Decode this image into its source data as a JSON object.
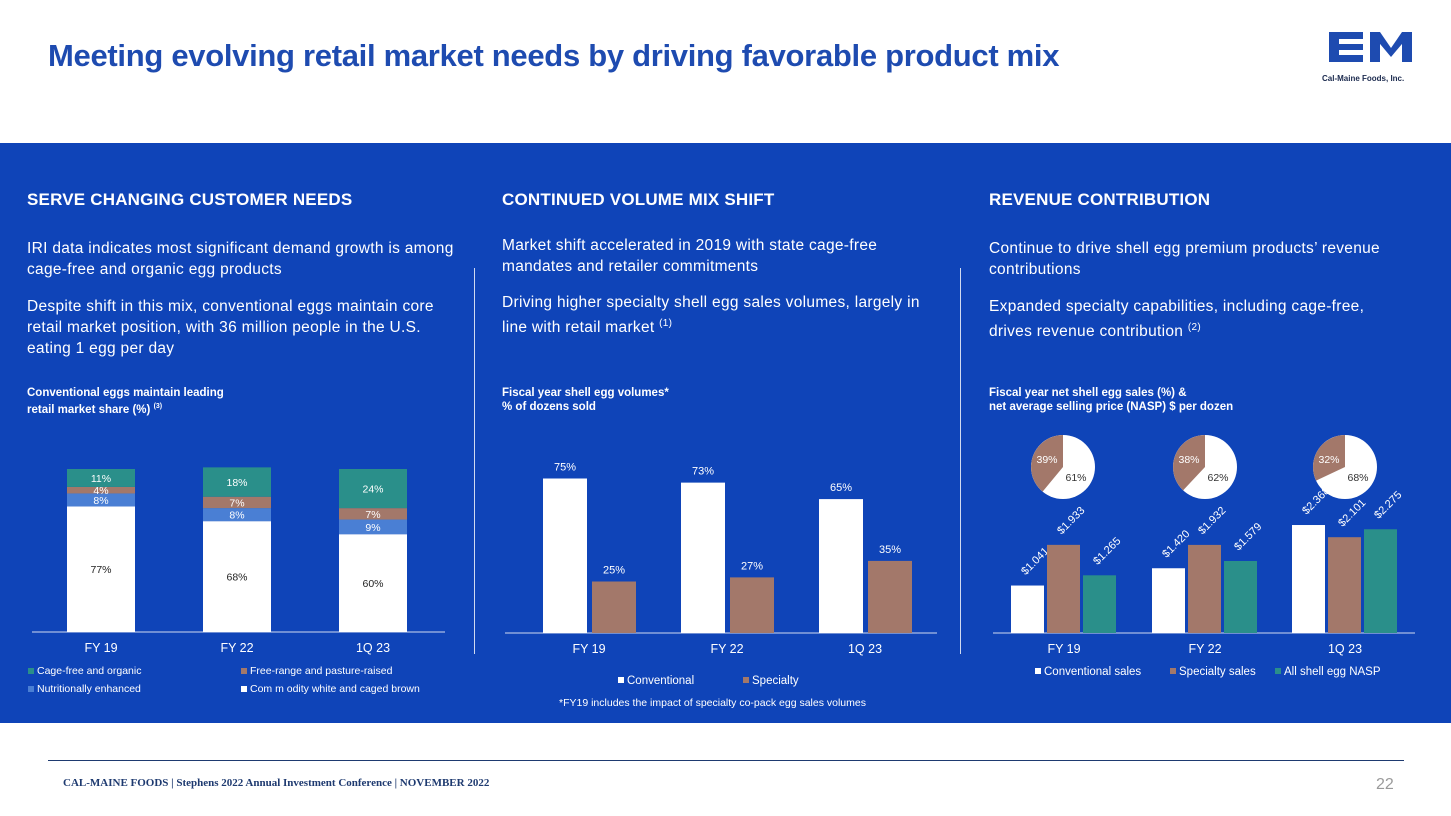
{
  "title": "Meeting evolving retail market needs by driving favorable product mix",
  "logo": {
    "letters": "CM",
    "company": "Cal-Maine Foods, Inc.",
    "color": "#1e4bb0"
  },
  "columns": [
    {
      "heading": "SERVE CHANGING CUSTOMER NEEDS",
      "para1": "IRI data indicates most significant demand growth is among cage-free and organic egg products",
      "para2": "Despite shift in this mix, conventional eggs maintain core retail market position, with 36 million people in the U.S. eating 1 egg per day",
      "chart_title_line1": "Conventional eggs maintain leading",
      "chart_title_line2": "retail market share (%)",
      "chart_title_sup": "(3)"
    },
    {
      "heading": "CONTINUED VOLUME MIX SHIFT",
      "para1": "Market shift accelerated in 2019 with state cage-free mandates and retailer commitments",
      "para2": "Driving higher specialty shell egg sales volumes, largely in line with retail market",
      "para2_sup": "(1)",
      "chart_title_line1": "Fiscal year shell egg volumes*",
      "chart_title_line2": "% of dozens sold",
      "footnote": "*FY19 includes the impact of specialty co-pack egg sales volumes"
    },
    {
      "heading": "REVENUE CONTRIBUTION",
      "para1": "Continue to drive shell egg premium products’ revenue contributions",
      "para2": "Expanded specialty capabilities, including cage-free, drives revenue contribution",
      "para2_sup": "(2)",
      "chart_title_line1": "Fiscal year net shell egg sales (%) &",
      "chart_title_line2": "net average selling price (NASP) $ per dozen"
    }
  ],
  "colors": {
    "band": "#0f44b8",
    "conventional": "#ffffff",
    "specialty": "#a3786a",
    "nutritional": "#4a7fd4",
    "cagefree": "#2a8f8a",
    "freerange": "#a3786a"
  },
  "chart_data": [
    {
      "type": "bar",
      "stacked": true,
      "title": "Conventional eggs maintain leading retail market share (%)",
      "categories": [
        "FY 19",
        "FY 22",
        "1Q 23"
      ],
      "series": [
        {
          "name": "Commodity white and caged brown",
          "values": [
            77,
            68,
            60
          ],
          "labels": [
            "77%",
            "68%",
            "60%"
          ]
        },
        {
          "name": "Nutritionally enhanced",
          "values": [
            8,
            8,
            9
          ],
          "labels": [
            "8%",
            "8%",
            "9%"
          ]
        },
        {
          "name": "Free-range and pasture-raised",
          "values": [
            4,
            7,
            7
          ],
          "labels": [
            "4%",
            "7%",
            "7%"
          ]
        },
        {
          "name": "Cage-free and organic",
          "values": [
            11,
            18,
            24
          ],
          "labels": [
            "11%",
            "18%",
            "24%"
          ]
        }
      ],
      "legend": [
        "Cage-free and organic",
        "Free-range and pasture-raised",
        "Nutritionally enhanced",
        "Com m odity white and caged brown"
      ],
      "ylim": [
        0,
        100
      ]
    },
    {
      "type": "bar",
      "title": "Fiscal year shell egg volumes* % of dozens sold",
      "categories": [
        "FY 19",
        "FY 22",
        "1Q 23"
      ],
      "series": [
        {
          "name": "Conventional",
          "values": [
            75,
            73,
            65
          ],
          "labels": [
            "75%",
            "73%",
            "65%"
          ]
        },
        {
          "name": "Specialty",
          "values": [
            25,
            27,
            35
          ],
          "labels": [
            "25%",
            "27%",
            "35%"
          ]
        }
      ],
      "ylim": [
        0,
        100
      ]
    },
    {
      "type": "pie",
      "title": "Fiscal year net shell egg sales (%)",
      "categories": [
        "FY 19",
        "FY 22",
        "1Q 23"
      ],
      "pies": [
        {
          "conventional": 61,
          "specialty": 39,
          "labels": [
            "61%",
            "39%"
          ]
        },
        {
          "conventional": 62,
          "specialty": 38,
          "labels": [
            "62%",
            "38%"
          ]
        },
        {
          "conventional": 68,
          "specialty": 32,
          "labels": [
            "68%",
            "32%"
          ]
        }
      ]
    },
    {
      "type": "bar",
      "title": "net average selling price (NASP) $ per dozen",
      "categories": [
        "FY 19",
        "FY 22",
        "1Q 23"
      ],
      "series": [
        {
          "name": "Conventional sales",
          "values": [
            1.041,
            1.42,
            2.368
          ],
          "labels": [
            "$1.041",
            "$1.420",
            "$2.368"
          ]
        },
        {
          "name": "Specialty sales",
          "values": [
            1.933,
            1.932,
            2.101
          ],
          "labels": [
            "$1.933",
            "$1.932",
            "$2.101"
          ]
        },
        {
          "name": "All shell egg NASP",
          "values": [
            1.265,
            1.579,
            2.275
          ],
          "labels": [
            "$1.265",
            "$1.579",
            "$2.275"
          ]
        }
      ],
      "ylim": [
        0,
        2.8
      ]
    }
  ],
  "footer": {
    "text": "CAL-MAINE FOODS | Stephens 2022 Annual Investment Conference | NOVEMBER 2022",
    "page": "22"
  }
}
